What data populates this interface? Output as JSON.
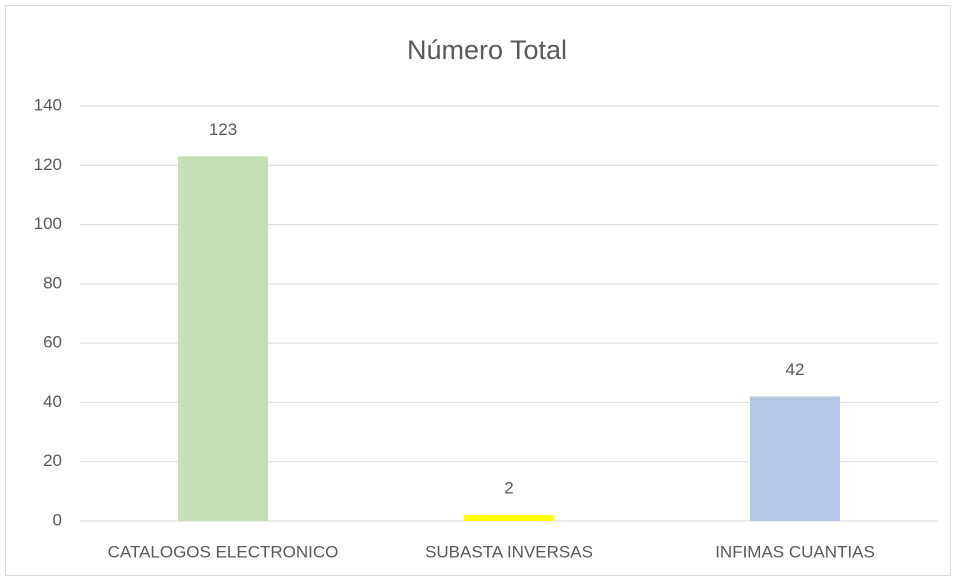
{
  "chart_data": {
    "type": "bar",
    "title": "Número Total",
    "categories": [
      "CATALOGOS ELECTRONICO",
      "SUBASTA INVERSAS",
      "INFIMAS CUANTIAS"
    ],
    "values": [
      123,
      2,
      42
    ],
    "colors": [
      "#c5e0b4",
      "#ffff00",
      "#b4c7e7"
    ],
    "ylim": [
      0,
      140
    ],
    "yticks": [
      0,
      20,
      40,
      60,
      80,
      100,
      120,
      140
    ],
    "grid": true
  }
}
